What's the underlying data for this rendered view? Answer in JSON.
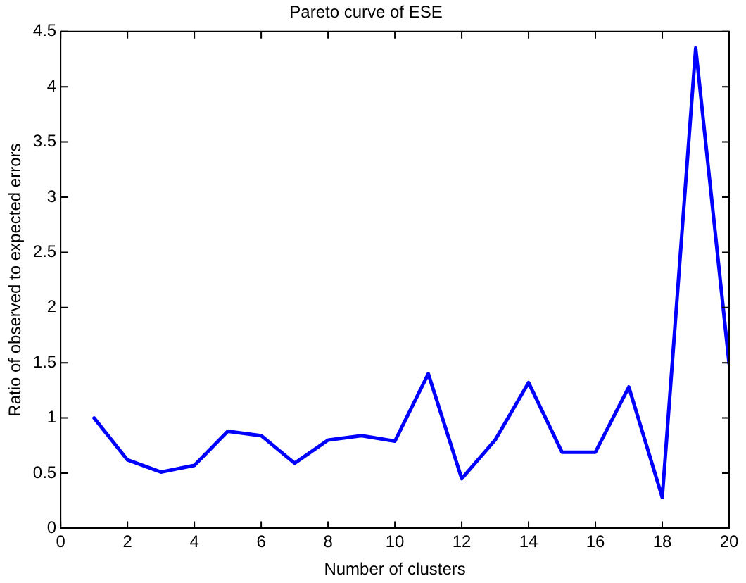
{
  "chart_data": {
    "type": "line",
    "title": "Pareto curve of ESE",
    "xlabel": "Number of clusters",
    "ylabel": "Ratio of observed to expected errors",
    "x": [
      1,
      2,
      3,
      4,
      5,
      6,
      7,
      8,
      9,
      10,
      11,
      12,
      13,
      14,
      15,
      16,
      17,
      18,
      19,
      20
    ],
    "series": [
      {
        "color": "#0000ff",
        "values": [
          1.0,
          0.62,
          0.51,
          0.57,
          0.88,
          0.84,
          0.59,
          0.8,
          0.84,
          0.79,
          1.4,
          0.45,
          0.8,
          1.32,
          0.69,
          0.69,
          1.28,
          0.28,
          4.35,
          1.49
        ]
      }
    ],
    "xlim": [
      0,
      20
    ],
    "xticks": [
      0,
      2,
      4,
      6,
      8,
      10,
      12,
      14,
      16,
      18,
      20
    ],
    "ylim": [
      0,
      4.5
    ],
    "yticks": [
      0,
      0.5,
      1,
      1.5,
      2,
      2.5,
      3,
      3.5,
      4,
      4.5
    ],
    "grid": false,
    "legend": false,
    "marker": "none",
    "line_style": "solid"
  }
}
